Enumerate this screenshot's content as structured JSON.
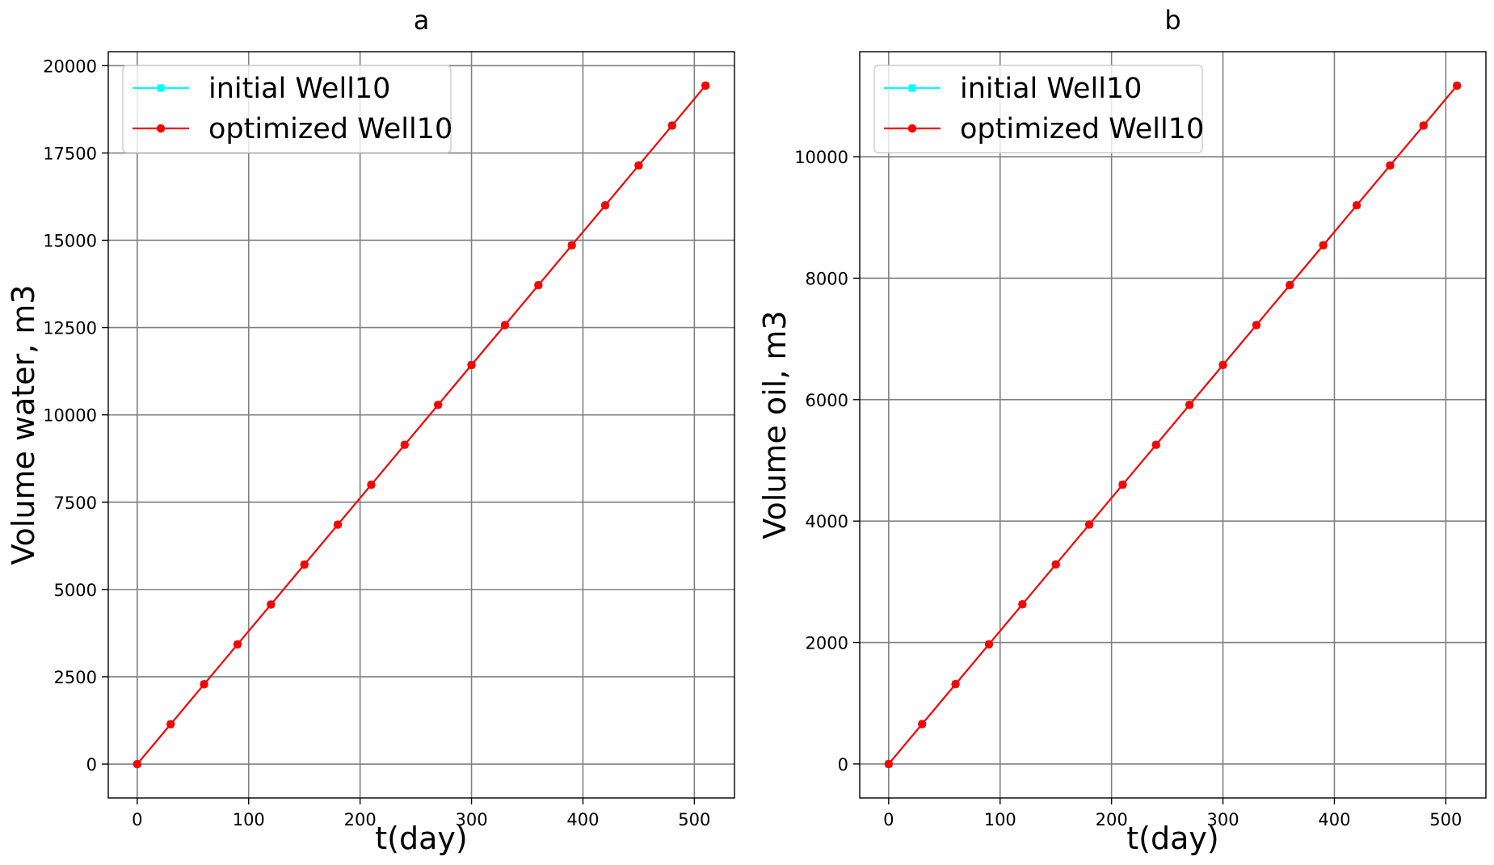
{
  "chart_data": [
    {
      "type": "line",
      "title": "a",
      "xlabel": "t(day)",
      "ylabel": "Volume water, m3",
      "xlim": [
        -26,
        536
      ],
      "ylim": [
        -970,
        20400
      ],
      "xticks": [
        0,
        100,
        200,
        300,
        400,
        500
      ],
      "xtick_labels": [
        "0",
        "100",
        "200",
        "300",
        "400",
        "500"
      ],
      "yticks": [
        0,
        2500,
        5000,
        7500,
        10000,
        12500,
        15000,
        17500,
        20000
      ],
      "ytick_labels": [
        "0",
        "2500",
        "5000",
        "7500",
        "10000",
        "12500",
        "15000",
        "17500",
        "20000"
      ],
      "grid": true,
      "legend_position": "top-left",
      "x": [
        0,
        30,
        60,
        90,
        120,
        150,
        180,
        210,
        240,
        270,
        300,
        330,
        360,
        390,
        420,
        450,
        480,
        510
      ],
      "series": [
        {
          "name": "initial Well10",
          "color": "#00ffff",
          "marker": "square",
          "values": [
            0,
            1143,
            2286,
            3429,
            4571,
            5714,
            6857,
            8000,
            9143,
            10286,
            11429,
            12571,
            13714,
            14857,
            16000,
            17143,
            18286,
            19429
          ]
        },
        {
          "name": "optimized Well10",
          "color": "#ff0000",
          "marker": "circle",
          "values": [
            0,
            1143,
            2286,
            3429,
            4571,
            5714,
            6857,
            8000,
            9143,
            10286,
            11429,
            12571,
            13714,
            14857,
            16000,
            17143,
            18286,
            19429
          ]
        }
      ]
    },
    {
      "type": "line",
      "title": "b",
      "xlabel": "t(day)",
      "ylabel": "Volume oil, m3",
      "xlim": [
        -26,
        536
      ],
      "ylim": [
        -560,
        11730
      ],
      "xticks": [
        0,
        100,
        200,
        300,
        400,
        500
      ],
      "xtick_labels": [
        "0",
        "100",
        "200",
        "300",
        "400",
        "500"
      ],
      "yticks": [
        0,
        2000,
        4000,
        6000,
        8000,
        10000
      ],
      "ytick_labels": [
        "0",
        "2000",
        "4000",
        "6000",
        "8000",
        "10000"
      ],
      "grid": true,
      "legend_position": "top-left",
      "x": [
        0,
        30,
        60,
        90,
        120,
        150,
        180,
        210,
        240,
        270,
        300,
        330,
        360,
        390,
        420,
        450,
        480,
        510
      ],
      "series": [
        {
          "name": "initial Well10",
          "color": "#00ffff",
          "marker": "square",
          "values": [
            0,
            657,
            1314,
            1971,
            2629,
            3286,
            3943,
            4600,
            5257,
            5914,
            6571,
            7229,
            7886,
            8543,
            9200,
            9857,
            10514,
            11171
          ]
        },
        {
          "name": "optimized Well10",
          "color": "#ff0000",
          "marker": "circle",
          "values": [
            0,
            657,
            1314,
            1971,
            2629,
            3286,
            3943,
            4600,
            5257,
            5914,
            6571,
            7229,
            7886,
            8543,
            9200,
            9857,
            10514,
            11171
          ]
        }
      ]
    }
  ]
}
